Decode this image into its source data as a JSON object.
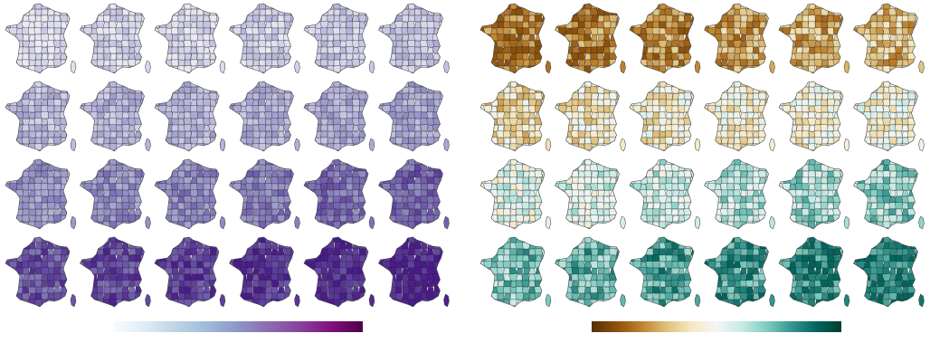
{
  "figure": {
    "description_visible_text": "",
    "panels": [
      {
        "id": "left",
        "colormap": "BuPu",
        "colormap_stops": [
          "#f7fcfd",
          "#e0ecf4",
          "#bfd3e6",
          "#9ebcda",
          "#8c96c6",
          "#8c6bb1",
          "#88419d",
          "#810f7c",
          "#4d004b"
        ],
        "map_fill_stops": [
          "#e9e8f3",
          "#d4d4ea",
          "#bcbbdd",
          "#a4a2cf",
          "#8c88c1",
          "#7563b0",
          "#5e3f9d",
          "#4a1b8a"
        ],
        "grid_rows": 4,
        "grid_cols": 6,
        "levels": [
          [
            0.05,
            0.12,
            0.1,
            0.16,
            0.2,
            0.24
          ],
          [
            0.28,
            0.32,
            0.34,
            0.36,
            0.38,
            0.4
          ],
          [
            0.48,
            0.52,
            0.56,
            0.6,
            0.66,
            0.72
          ],
          [
            0.78,
            0.82,
            0.86,
            0.9,
            0.94,
            0.98
          ]
        ]
      },
      {
        "id": "right",
        "colormap": "BrBG",
        "colormap_stops": [
          "#543005",
          "#8c510a",
          "#bf812d",
          "#dfc27d",
          "#f6e8c3",
          "#f5f5f5",
          "#c7eae5",
          "#80cdc1",
          "#35978f",
          "#01665e",
          "#003c30"
        ],
        "map_fill_stops": [
          "#8c510a",
          "#bf812d",
          "#dfc27d",
          "#f6e8c3",
          "#eef5f2",
          "#c7eae5",
          "#80cdc1",
          "#35978f",
          "#01665e"
        ],
        "grid_rows": 4,
        "grid_cols": 6,
        "levels": [
          [
            0.08,
            0.12,
            0.14,
            0.2,
            0.22,
            0.26
          ],
          [
            0.34,
            0.38,
            0.4,
            0.42,
            0.44,
            0.46
          ],
          [
            0.54,
            0.58,
            0.6,
            0.64,
            0.68,
            0.72
          ],
          [
            0.76,
            0.8,
            0.84,
            0.88,
            0.92,
            0.96
          ]
        ]
      }
    ]
  }
}
